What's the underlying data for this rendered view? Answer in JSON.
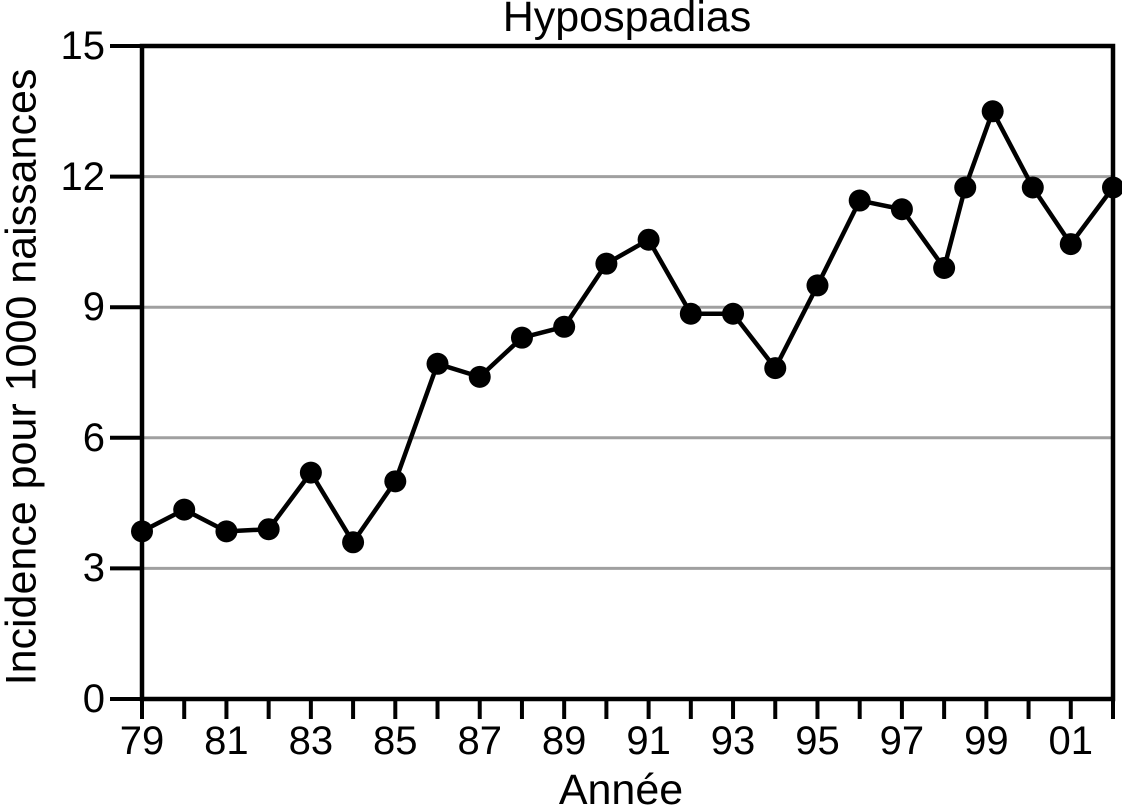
{
  "chart_data": {
    "type": "line",
    "title": "Hypospadias",
    "xlabel": "Année",
    "ylabel": "Incidence pour 1000 naissances",
    "ylim": [
      0,
      15
    ],
    "xlim_years": [
      1979,
      2002
    ],
    "y_ticks": [
      15,
      12,
      9,
      6,
      3,
      0
    ],
    "y_tick_labels": [
      "15",
      "12",
      "9",
      "6",
      "3",
      "0"
    ],
    "y_gridlines": [
      3,
      6,
      9,
      12
    ],
    "x_tick_step": 1,
    "x_label_years": [
      1979,
      1981,
      1983,
      1985,
      1987,
      1989,
      1991,
      1993,
      1995,
      1997,
      1999,
      2001
    ],
    "x_tick_labels": [
      "79",
      "81",
      "83",
      "85",
      "87",
      "89",
      "91",
      "93",
      "95",
      "97",
      "99",
      "01"
    ],
    "grid": "horizontal-only",
    "legend": "none",
    "series_color": "#000000",
    "gridline_color": "#a0a0a0",
    "points": [
      [
        1979,
        3.85
      ],
      [
        1980,
        4.35
      ],
      [
        1981,
        3.85
      ],
      [
        1982,
        3.9
      ],
      [
        1983,
        5.2
      ],
      [
        1984,
        3.6
      ],
      [
        1985,
        5.0
      ],
      [
        1986,
        7.7
      ],
      [
        1987,
        7.4
      ],
      [
        1988,
        8.3
      ],
      [
        1989,
        8.55
      ],
      [
        1990,
        10.0
      ],
      [
        1991,
        10.55
      ],
      [
        1992,
        8.85
      ],
      [
        1993,
        8.85
      ],
      [
        1994,
        7.6
      ],
      [
        1995,
        9.5
      ],
      [
        1996,
        11.45
      ],
      [
        1997,
        11.25
      ],
      [
        1998,
        9.9
      ],
      [
        1998.5,
        11.75
      ],
      [
        1999.15,
        13.5
      ],
      [
        2000.1,
        11.75
      ],
      [
        2001,
        10.45
      ],
      [
        2002,
        11.75
      ]
    ]
  }
}
